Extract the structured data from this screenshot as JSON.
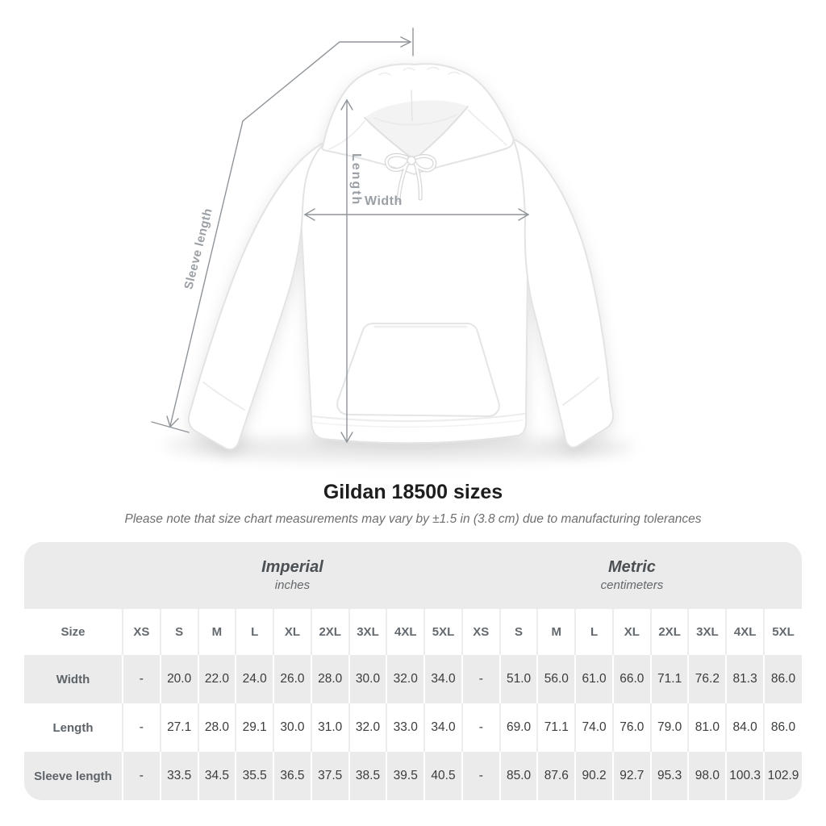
{
  "title": "Gildan 18500 sizes",
  "subtitle": "Please note that size chart measurements may vary by ±1.5 in (3.8 cm) due to manufacturing tolerances",
  "diagram": {
    "description": "white pullover hoodie flat-lay with measurement arrows",
    "labels": {
      "sleeve_length": "Sleeve length",
      "length": "Length",
      "width": "Width"
    },
    "line_color": "#8f9499",
    "label_color": "#9aa0a5"
  },
  "size_table": {
    "size_header": "Size",
    "groups": [
      {
        "label": "Imperial",
        "sublabel": "inches"
      },
      {
        "label": "Metric",
        "sublabel": "centimeters"
      }
    ],
    "sizes": [
      "XS",
      "S",
      "M",
      "L",
      "XL",
      "2XL",
      "3XL",
      "4XL",
      "5XL"
    ],
    "rows": [
      {
        "label": "Width",
        "imperial": [
          "-",
          "20.0",
          "22.0",
          "24.0",
          "26.0",
          "28.0",
          "30.0",
          "32.0",
          "34.0"
        ],
        "metric": [
          "-",
          "51.0",
          "56.0",
          "61.0",
          "66.0",
          "71.1",
          "76.2",
          "81.3",
          "86.0"
        ]
      },
      {
        "label": "Length",
        "imperial": [
          "-",
          "27.1",
          "28.0",
          "29.1",
          "30.0",
          "31.0",
          "32.0",
          "33.0",
          "34.0"
        ],
        "metric": [
          "-",
          "69.0",
          "71.1",
          "74.0",
          "76.0",
          "79.0",
          "81.0",
          "84.0",
          "86.0"
        ]
      },
      {
        "label": "Sleeve length",
        "imperial": [
          "-",
          "33.5",
          "34.5",
          "35.5",
          "36.5",
          "37.5",
          "38.5",
          "39.5",
          "40.5"
        ],
        "metric": [
          "-",
          "85.0",
          "87.6",
          "90.2",
          "92.7",
          "95.3",
          "98.0",
          "100.3",
          "102.9"
        ]
      }
    ],
    "colors": {
      "band_gray": "#ebebeb",
      "row_white": "#ffffff",
      "header_text": "#63696e",
      "value_text": "#3a3c3e"
    }
  },
  "chart_data": {
    "type": "table",
    "title": "Gildan 18500 sizes",
    "note": "Size chart measurements may vary by ±1.5 in (3.8 cm) due to manufacturing tolerances",
    "column_groups": [
      {
        "label": "Imperial",
        "unit": "inches",
        "span": 9
      },
      {
        "label": "Metric",
        "unit": "centimeters",
        "span": 9
      }
    ],
    "columns": [
      "Size",
      "XS",
      "S",
      "M",
      "L",
      "XL",
      "2XL",
      "3XL",
      "4XL",
      "5XL",
      "XS",
      "S",
      "M",
      "L",
      "XL",
      "2XL",
      "3XL",
      "4XL",
      "5XL"
    ],
    "rows": [
      {
        "label": "Width",
        "imperial_in": [
          null,
          20.0,
          22.0,
          24.0,
          26.0,
          28.0,
          30.0,
          32.0,
          34.0
        ],
        "metric_cm": [
          null,
          51.0,
          56.0,
          61.0,
          66.0,
          71.1,
          76.2,
          81.3,
          86.0
        ]
      },
      {
        "label": "Length",
        "imperial_in": [
          null,
          27.1,
          28.0,
          29.1,
          30.0,
          31.0,
          32.0,
          33.0,
          34.0
        ],
        "metric_cm": [
          null,
          69.0,
          71.1,
          74.0,
          76.0,
          79.0,
          81.0,
          84.0,
          86.0
        ]
      },
      {
        "label": "Sleeve length",
        "imperial_in": [
          null,
          33.5,
          34.5,
          35.5,
          36.5,
          37.5,
          38.5,
          39.5,
          40.5
        ],
        "metric_cm": [
          null,
          85.0,
          87.6,
          90.2,
          92.7,
          95.3,
          98.0,
          100.3,
          102.9
        ]
      }
    ],
    "empty_cell_marker": "-"
  }
}
